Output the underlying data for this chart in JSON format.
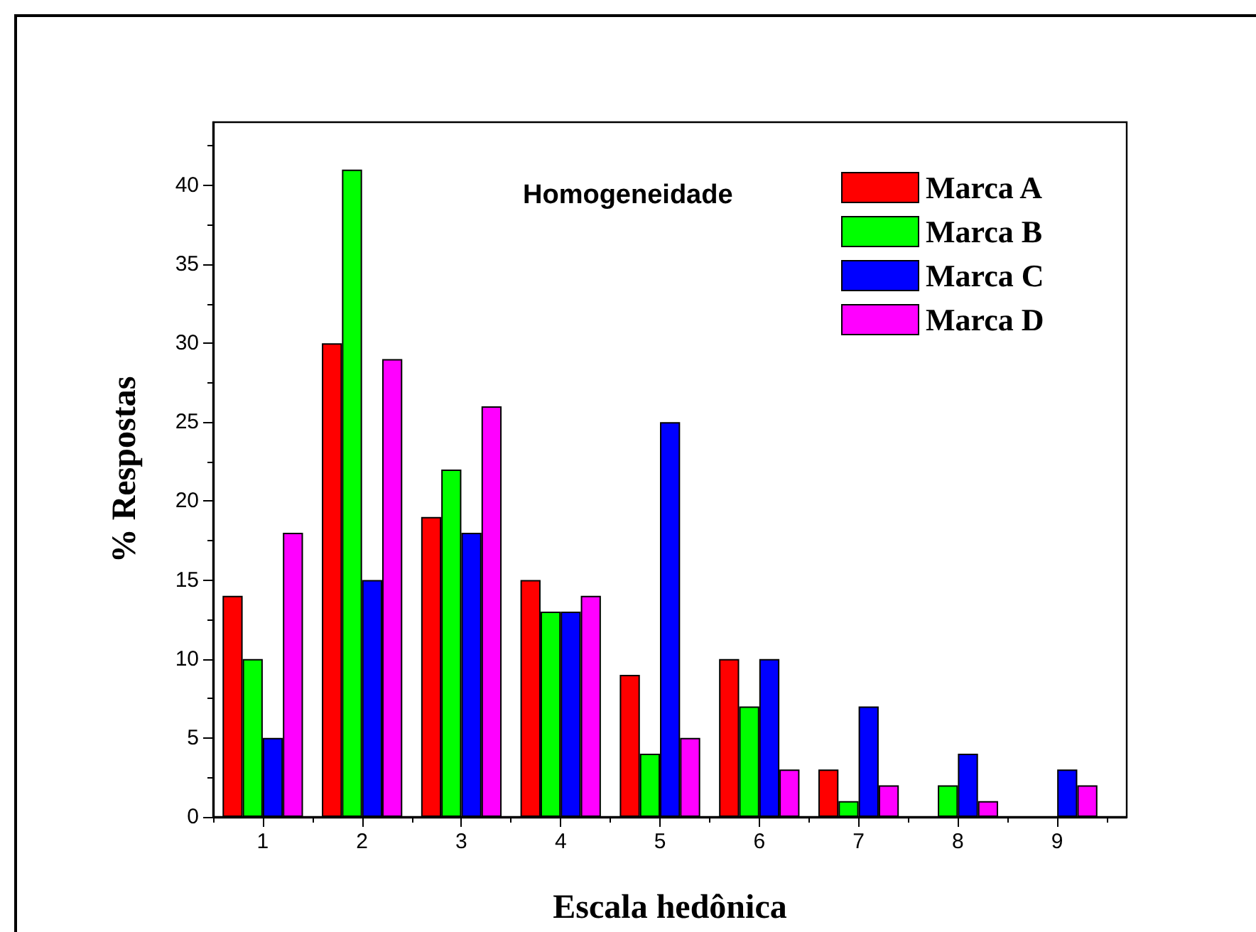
{
  "chart_data": {
    "type": "bar",
    "title": "Homogeneidade",
    "xlabel": "Escala hedônica",
    "ylabel": "% Respostas",
    "x": [
      1,
      2,
      3,
      4,
      5,
      6,
      7,
      8,
      9
    ],
    "series": [
      {
        "name": "Marca A",
        "color": "#ff0000",
        "values": [
          14,
          30,
          19,
          15,
          9,
          10,
          3,
          0,
          0
        ]
      },
      {
        "name": "Marca B",
        "color": "#00ff00",
        "values": [
          10,
          41,
          22,
          13,
          4,
          7,
          1,
          2,
          0
        ]
      },
      {
        "name": "Marca C",
        "color": "#0000ff",
        "values": [
          5,
          15,
          18,
          13,
          25,
          10,
          7,
          4,
          3
        ]
      },
      {
        "name": "Marca D",
        "color": "#ff00ff",
        "values": [
          18,
          29,
          26,
          14,
          5,
          3,
          2,
          1,
          2
        ]
      }
    ],
    "xlim": [
      0.5,
      9.7
    ],
    "xticks": [
      {
        "value": 0.5,
        "label": null
      },
      1,
      {
        "value": 1.5,
        "label": null
      },
      2,
      {
        "value": 2.5,
        "label": null
      },
      3,
      {
        "value": 3.5,
        "label": null
      },
      4,
      {
        "value": 4.5,
        "label": null
      },
      5,
      {
        "value": 5.5,
        "label": null
      },
      6,
      {
        "value": 6.5,
        "label": null
      },
      7,
      {
        "value": 7.5,
        "label": null
      },
      8,
      {
        "value": 8.5,
        "label": null
      },
      9,
      {
        "value": 9.5,
        "label": null
      }
    ],
    "ylim": [
      0,
      44
    ],
    "yticks": [
      0,
      {
        "value": 2.5,
        "label": null
      },
      5,
      {
        "value": 7.5,
        "label": null
      },
      10,
      {
        "value": 12.5,
        "label": null
      },
      15,
      {
        "value": 17.5,
        "label": null
      },
      20,
      {
        "value": 22.5,
        "label": null
      },
      25,
      {
        "value": 27.5,
        "label": null
      },
      30,
      {
        "value": 32.5,
        "label": null
      },
      35,
      {
        "value": 37.5,
        "label": null
      },
      40,
      {
        "value": 42.5,
        "label": null
      }
    ],
    "legend": "top right"
  }
}
